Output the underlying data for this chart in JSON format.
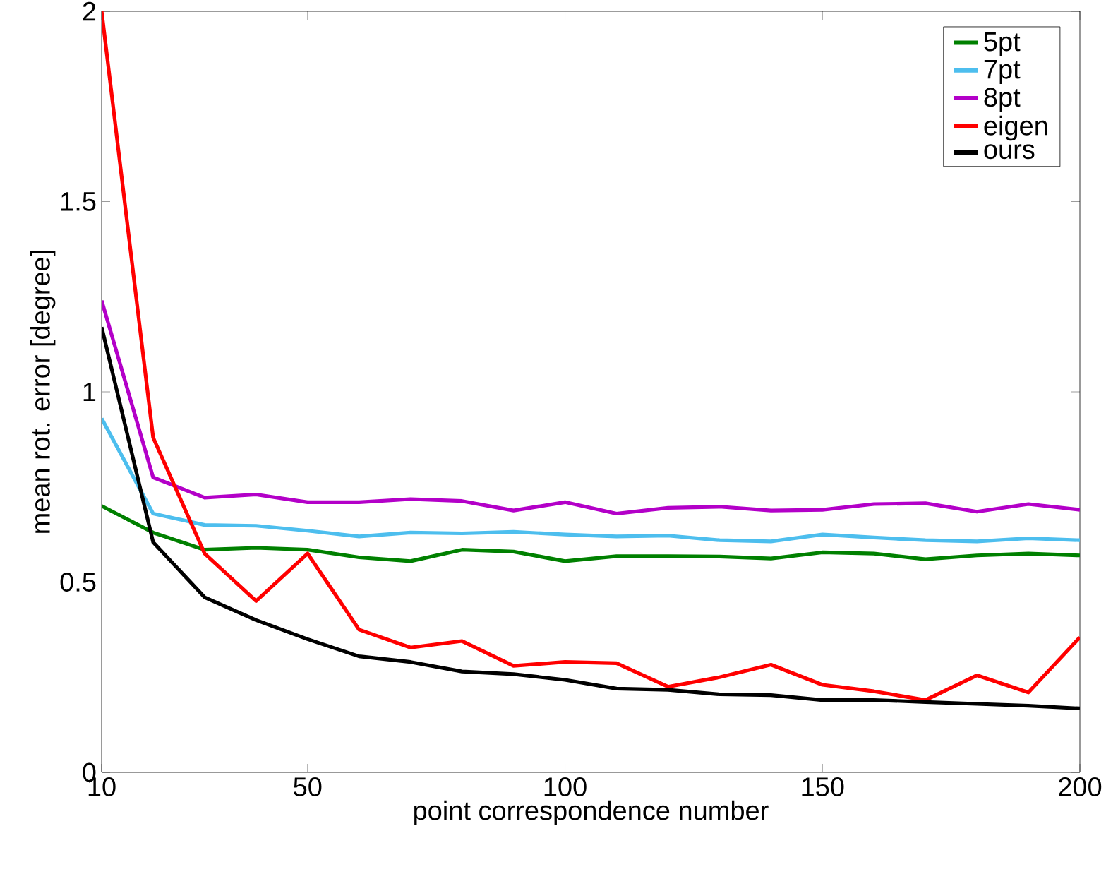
{
  "chart_data": {
    "type": "line",
    "xlabel": "point correspondence number",
    "ylabel": "mean rot. error [degree]",
    "x": [
      10,
      20,
      30,
      40,
      50,
      60,
      70,
      80,
      90,
      100,
      110,
      120,
      130,
      140,
      150,
      160,
      170,
      180,
      190,
      200
    ],
    "series": [
      {
        "name": "5pt",
        "color": "#008000",
        "values": [
          0.7,
          0.63,
          0.585,
          0.59,
          0.585,
          0.565,
          0.555,
          0.585,
          0.58,
          0.555,
          0.568,
          0.568,
          0.567,
          0.562,
          0.578,
          0.575,
          0.56,
          0.57,
          0.575,
          0.57
        ]
      },
      {
        "name": "7pt",
        "color": "#4dbeee",
        "values": [
          0.93,
          0.68,
          0.65,
          0.648,
          0.635,
          0.62,
          0.63,
          0.628,
          0.632,
          0.625,
          0.62,
          0.622,
          0.61,
          0.607,
          0.625,
          0.617,
          0.61,
          0.607,
          0.615,
          0.61
        ]
      },
      {
        "name": "8pt",
        "color": "#b300c8",
        "values": [
          1.24,
          0.775,
          0.722,
          0.73,
          0.71,
          0.71,
          0.718,
          0.713,
          0.688,
          0.71,
          0.68,
          0.695,
          0.698,
          0.688,
          0.69,
          0.705,
          0.707,
          0.685,
          0.705,
          0.69
        ]
      },
      {
        "name": "eigen",
        "color": "#ff0000",
        "values": [
          2.0,
          0.88,
          0.575,
          0.45,
          0.575,
          0.375,
          0.328,
          0.345,
          0.28,
          0.29,
          0.287,
          0.225,
          0.25,
          0.283,
          0.23,
          0.213,
          0.19,
          0.255,
          0.21,
          0.355
        ]
      },
      {
        "name": "ours",
        "color": "#000000",
        "values": [
          1.17,
          0.605,
          0.46,
          0.4,
          0.35,
          0.305,
          0.29,
          0.265,
          0.258,
          0.243,
          0.22,
          0.217,
          0.205,
          0.203,
          0.19,
          0.19,
          0.185,
          0.18,
          0.175,
          0.168
        ]
      }
    ],
    "xlim": [
      10,
      200
    ],
    "ylim": [
      0,
      2
    ],
    "xticks": [
      10,
      50,
      100,
      150,
      200
    ],
    "yticks": [
      0,
      0.5,
      1,
      1.5,
      2
    ],
    "grid": false,
    "legend": "top right",
    "marker": "none",
    "line_style": "solid"
  }
}
